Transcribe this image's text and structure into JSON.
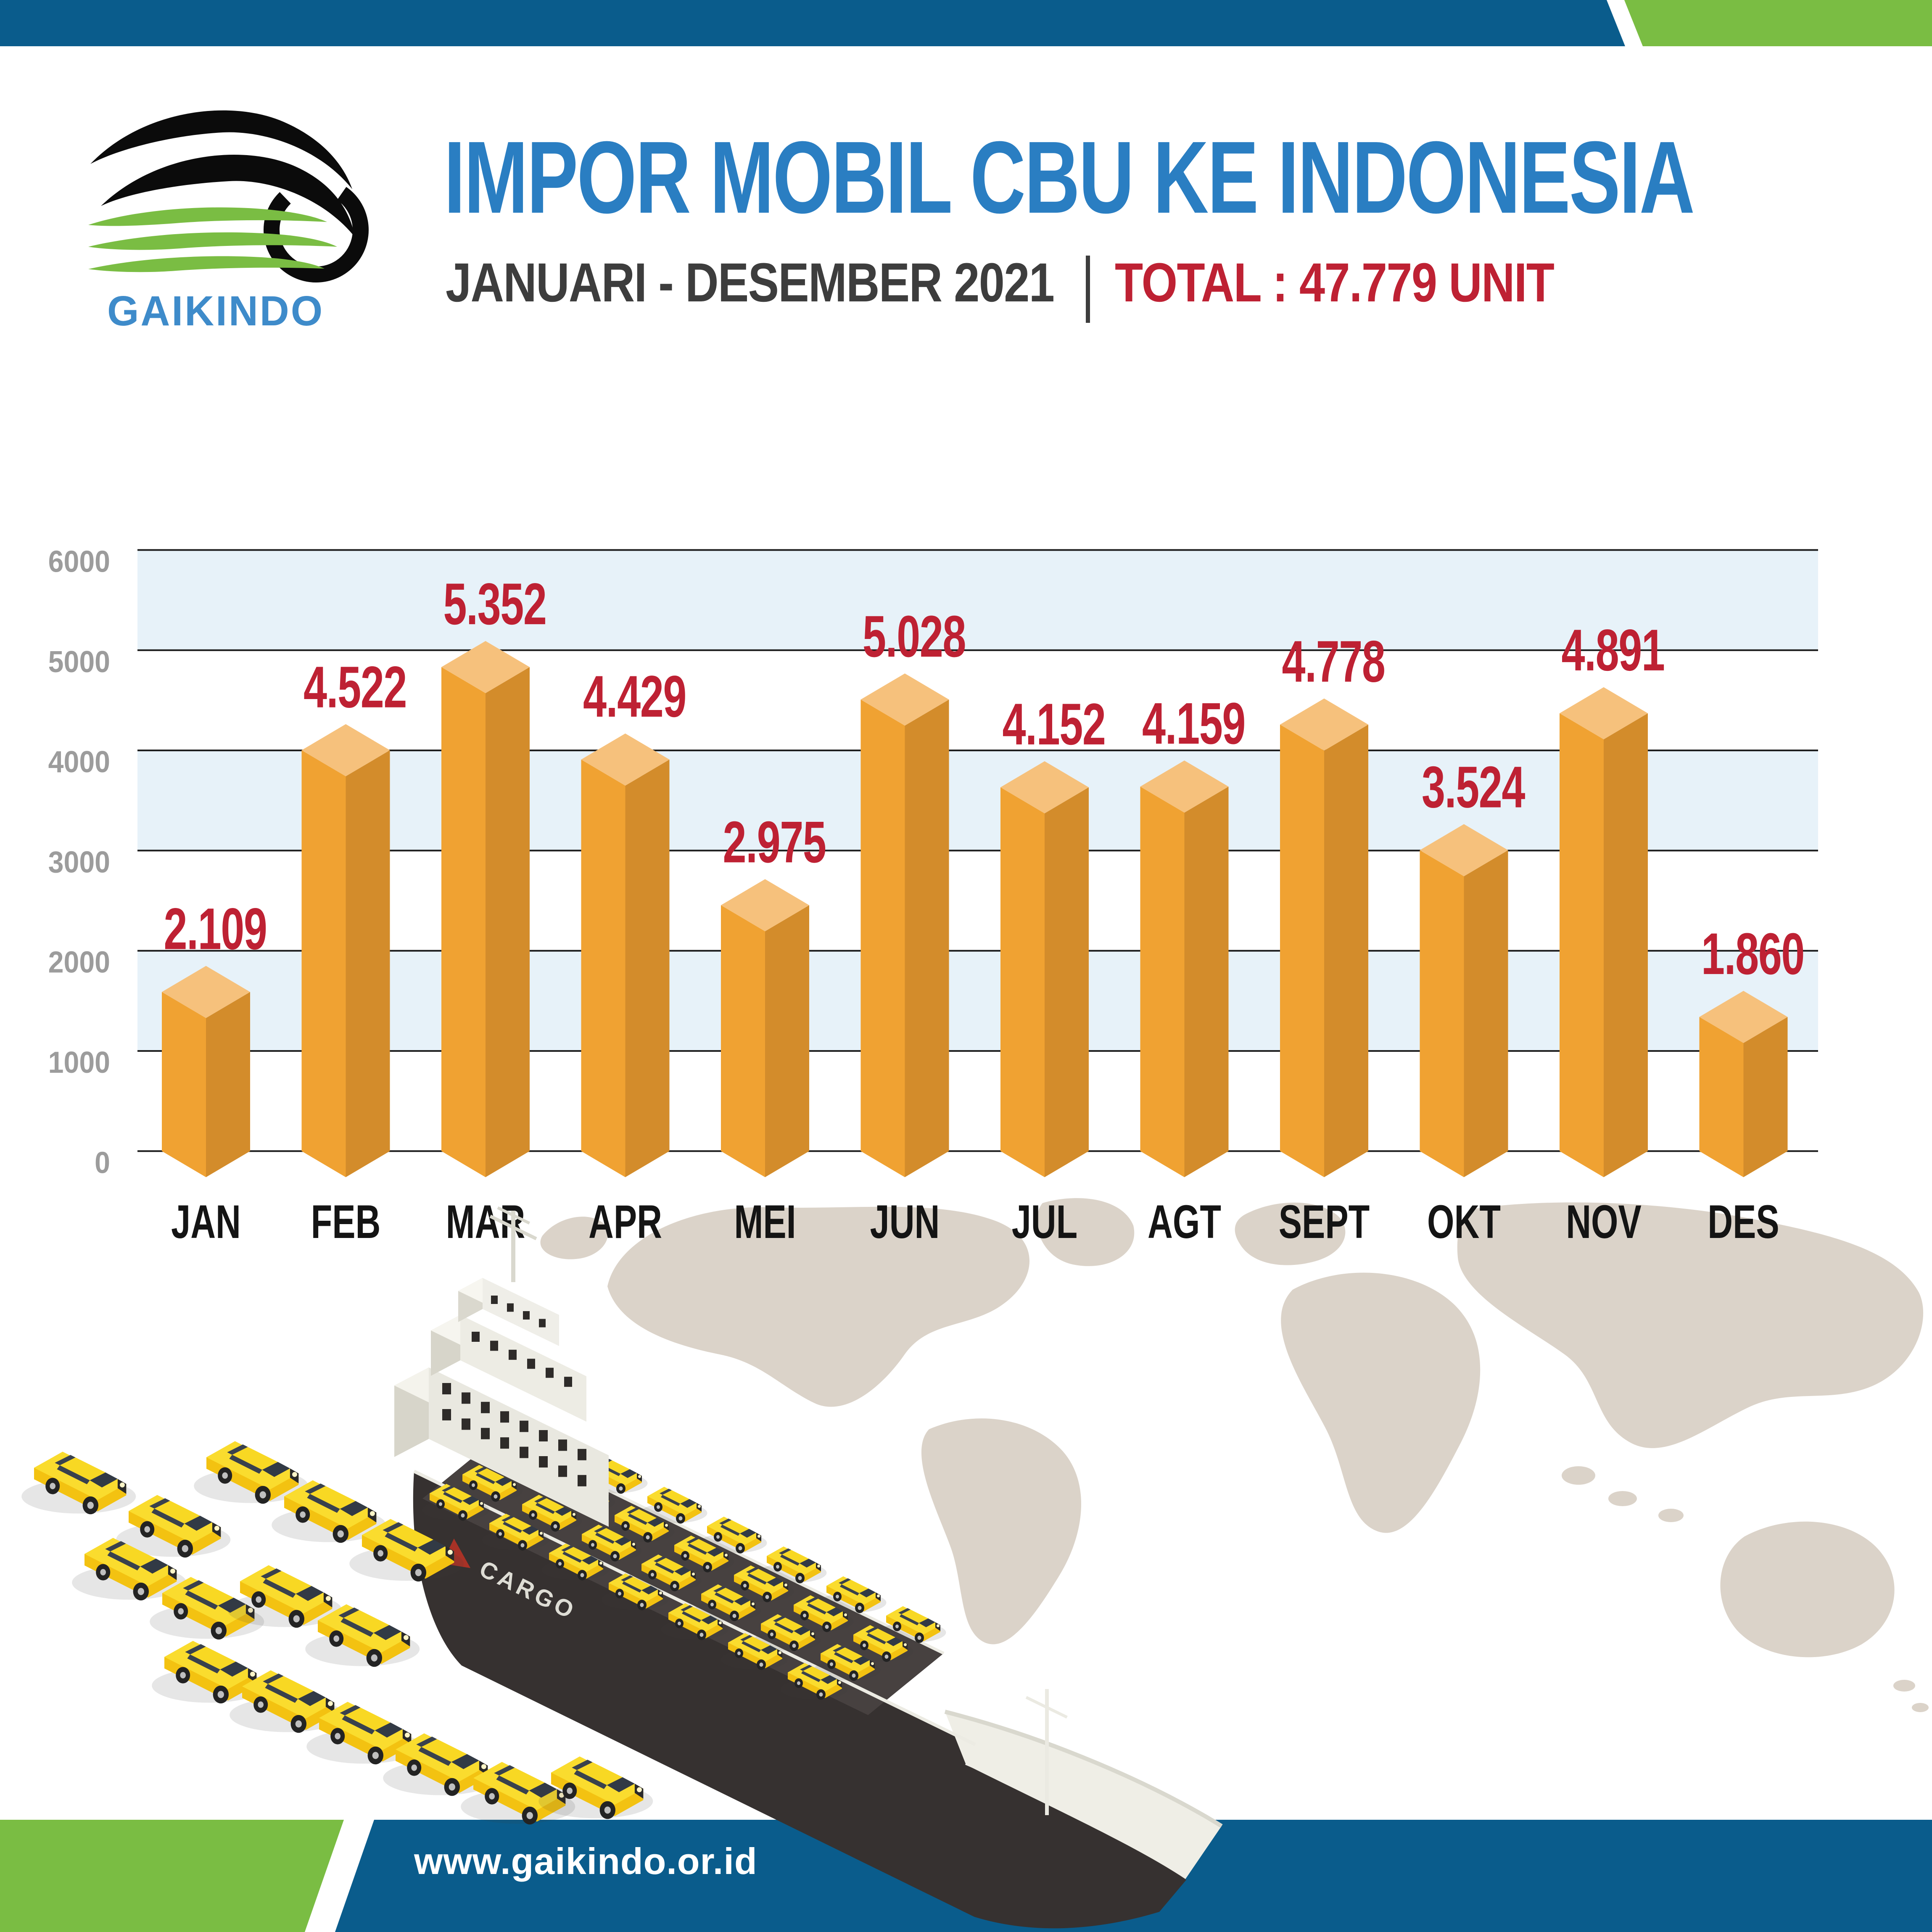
{
  "header": {
    "logo_text": "GAIKINDO",
    "title": "IMPOR MOBIL CBU KE INDONESIA",
    "period": "JANUARI - DESEMBER 2021",
    "total": "TOTAL : 47.779 UNIT"
  },
  "chart_data": {
    "type": "bar",
    "title": "IMPOR MOBIL CBU KE INDONESIA",
    "subtitle": "JANUARI - DESEMBER 2021",
    "total_label": "TOTAL : 47.779 UNIT",
    "total_units": 47779,
    "categories": [
      "JAN",
      "FEB",
      "MAR",
      "APR",
      "MEI",
      "JUN",
      "JUL",
      "AGT",
      "SEPT",
      "OKT",
      "NOV",
      "DES"
    ],
    "values": [
      2109,
      4522,
      5352,
      4429,
      2975,
      5028,
      4152,
      4159,
      4778,
      3524,
      4891,
      1860
    ],
    "value_labels": [
      "2.109",
      "4.522",
      "5.352",
      "4.429",
      "2.975",
      "5.028",
      "4.152",
      "4.159",
      "4.778",
      "3.524",
      "4.891",
      "1.860"
    ],
    "y_ticks": [
      0,
      1000,
      2000,
      3000,
      4000,
      5000,
      6000
    ],
    "ylim": [
      0,
      6000
    ],
    "xlabel": "",
    "ylabel": "",
    "grid": true,
    "legend": "none",
    "bar_style": "isometric-3d"
  },
  "footer": {
    "url": "www.gaikindo.or.id"
  },
  "illustration": {
    "cargo_label": "CARGO"
  },
  "colors": {
    "header_blue": "#0A5C8C",
    "accent_green": "#7ABD43",
    "title_blue": "#2A7EC2",
    "logo_blue": "#3E8BCA",
    "subtitle_dark": "#3D3D3D",
    "value_red": "#BE2133",
    "band_blue": "#E7F2F9",
    "grid_dark": "#1B1B1B",
    "ytick_gray": "#9C9C9C",
    "xlabel_dark": "#141414",
    "bar_front": "#F0A232",
    "bar_side": "#D38C2B",
    "bar_top": "#F6C17C",
    "map_beige": "#DBD3C9",
    "car_yellow": "#F3C211",
    "car_yellow_top": "#FADC2E",
    "hull_dark": "#363130"
  }
}
